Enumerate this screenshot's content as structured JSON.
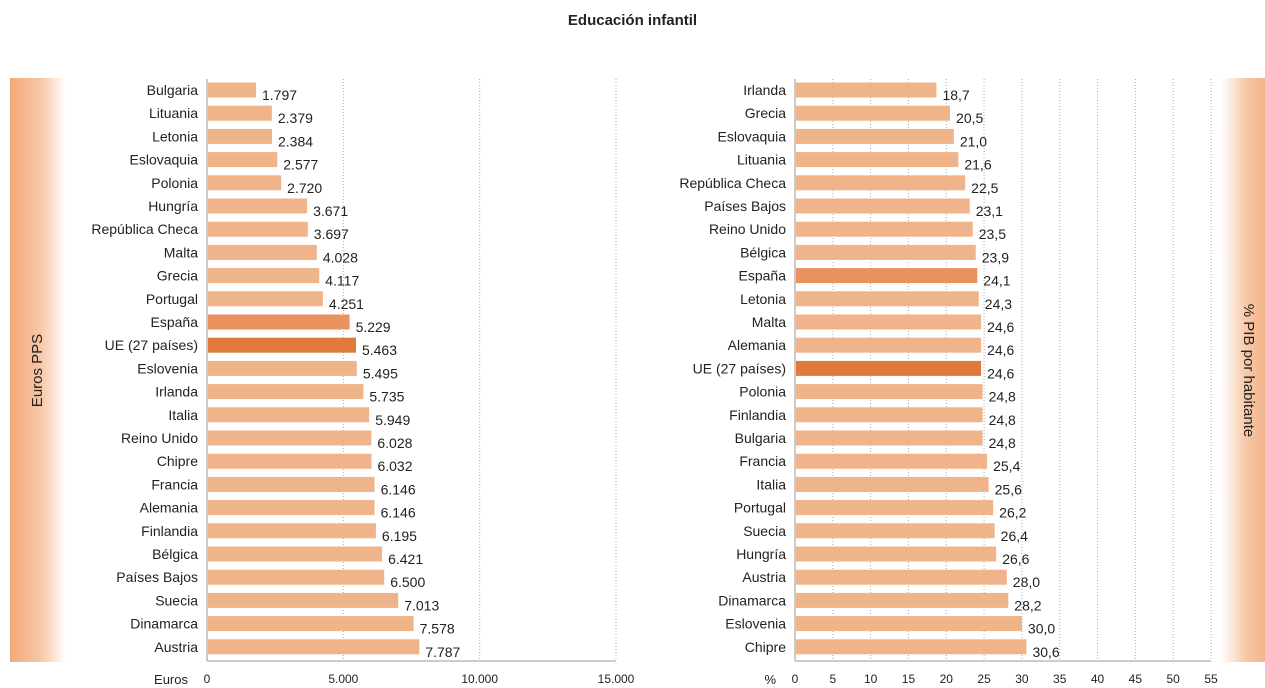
{
  "title": "Educación infantil",
  "left_band_label": "Euros PPS",
  "right_band_label": "% PIB por habitante",
  "colors": {
    "bar": "#f0b48a",
    "highlight_spain": "#ea9160",
    "highlight_eu": "#e07a3a"
  },
  "chart_data": [
    {
      "type": "bar",
      "orientation": "horizontal",
      "xlabel": "Euros",
      "xlim": [
        0,
        15000
      ],
      "xticks": [
        0,
        5000,
        10000,
        15000
      ],
      "xtick_labels": [
        "0",
        "5.000",
        "10.000",
        "15.000"
      ],
      "grid": "vertical dotted",
      "categories": [
        "Bulgaria",
        "Lituania",
        "Letonia",
        "Eslovaquia",
        "Polonia",
        "Hungría",
        "República Checa",
        "Malta",
        "Grecia",
        "Portugal",
        "España",
        "UE (27 países)",
        "Eslovenia",
        "Irlanda",
        "Italia",
        "Reino Unido",
        "Chipre",
        "Francia",
        "Alemania",
        "Finlandia",
        "Bélgica",
        "Países Bajos",
        "Suecia",
        "Dinamarca",
        "Austria"
      ],
      "values": [
        1797,
        2379,
        2384,
        2577,
        2720,
        3671,
        3697,
        4028,
        4117,
        4251,
        5229,
        5463,
        5495,
        5735,
        5949,
        6028,
        6032,
        6146,
        6146,
        6195,
        6421,
        6500,
        7013,
        7578,
        7787
      ],
      "value_labels": [
        "1.797",
        "2.379",
        "2.384",
        "2.577",
        "2.720",
        "3.671",
        "3.697",
        "4.028",
        "4.117",
        "4.251",
        "5.229",
        "5.463",
        "5.495",
        "5.735",
        "5.949",
        "6.028",
        "6.032",
        "6.146",
        "6.146",
        "6.195",
        "6.421",
        "6.500",
        "7.013",
        "7.578",
        "7.787"
      ],
      "highlights": {
        "España": "highlight_spain",
        "UE (27 países)": "highlight_eu"
      }
    },
    {
      "type": "bar",
      "orientation": "horizontal",
      "xlabel": "%",
      "xlim": [
        0,
        55
      ],
      "xticks": [
        0,
        5,
        10,
        15,
        20,
        25,
        30,
        35,
        40,
        45,
        50,
        55
      ],
      "xtick_labels": [
        "0",
        "5",
        "10",
        "15",
        "20",
        "25",
        "30",
        "35",
        "40",
        "45",
        "50",
        "55"
      ],
      "grid": "vertical dotted",
      "categories": [
        "Irlanda",
        "Grecia",
        "Eslovaquia",
        "Lituania",
        "República Checa",
        "Países Bajos",
        "Reino Unido",
        "Bélgica",
        "España",
        "Letonia",
        "Malta",
        "Alemania",
        "UE (27 países)",
        "Polonia",
        "Finlandia",
        "Bulgaria",
        "Francia",
        "Italia",
        "Portugal",
        "Suecia",
        "Hungría",
        "Austria",
        "Dinamarca",
        "Eslovenia",
        "Chipre"
      ],
      "values": [
        18.7,
        20.5,
        21.0,
        21.6,
        22.5,
        23.1,
        23.5,
        23.9,
        24.1,
        24.3,
        24.6,
        24.6,
        24.6,
        24.8,
        24.8,
        24.8,
        25.4,
        25.6,
        26.2,
        26.4,
        26.6,
        28.0,
        28.2,
        30.0,
        30.6
      ],
      "value_labels": [
        "18,7",
        "20,5",
        "21,0",
        "21,6",
        "22,5",
        "23,1",
        "23,5",
        "23,9",
        "24,1",
        "24,3",
        "24,6",
        "24,6",
        "24,6",
        "24,8",
        "24,8",
        "24,8",
        "25,4",
        "25,6",
        "26,2",
        "26,4",
        "26,6",
        "28,0",
        "28,2",
        "30,0",
        "30,6"
      ],
      "highlights": {
        "España": "highlight_spain",
        "UE (27 países)": "highlight_eu"
      }
    }
  ]
}
